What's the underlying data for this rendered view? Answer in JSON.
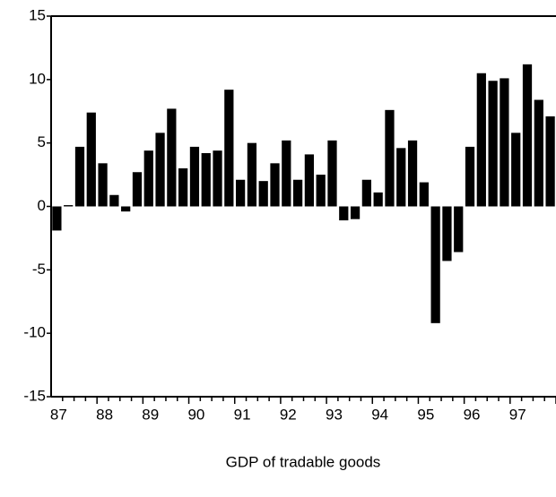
{
  "chart_data": {
    "type": "bar",
    "x_label": "GDP of tradable goods",
    "categories": [
      "87",
      null,
      null,
      null,
      "88",
      null,
      null,
      null,
      "89",
      null,
      null,
      null,
      "90",
      null,
      null,
      null,
      "91",
      null,
      null,
      null,
      "92",
      null,
      null,
      null,
      "93",
      null,
      null,
      null,
      "94",
      null,
      null,
      null,
      "95",
      null,
      null,
      null,
      "96",
      null,
      null,
      null,
      "97",
      null,
      null,
      null
    ],
    "values": [
      -1.9,
      0.1,
      4.7,
      7.4,
      3.4,
      0.9,
      -0.4,
      2.7,
      4.4,
      5.8,
      7.7,
      3.0,
      4.7,
      4.2,
      4.4,
      9.2,
      2.1,
      5.0,
      2.0,
      3.4,
      5.2,
      2.1,
      4.1,
      2.5,
      5.2,
      -1.1,
      -1.0,
      2.1,
      1.1,
      7.6,
      4.6,
      5.2,
      1.9,
      -9.2,
      -4.3,
      -3.6,
      4.7,
      10.5,
      9.9,
      10.1,
      5.8,
      11.2,
      8.4,
      7.1
    ],
    "color": "#000000",
    "ylim": [
      -15,
      15
    ],
    "yticks": [
      -15,
      -10,
      -5,
      0,
      5,
      10,
      15
    ],
    "grid": false
  }
}
